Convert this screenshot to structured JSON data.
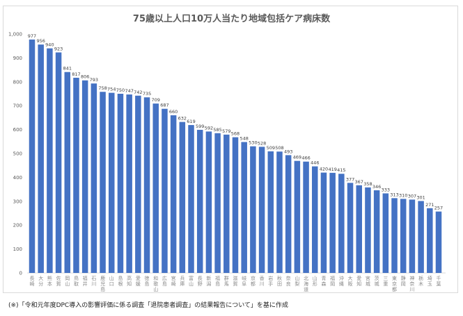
{
  "chart_data": {
    "type": "bar",
    "title": "75歳以上人口10万人当たり地域包括ケア病床数",
    "xlabel": "",
    "ylabel": "",
    "ylim": [
      0,
      1000
    ],
    "yticks": [
      "0",
      "100",
      "200",
      "300",
      "400",
      "500",
      "600",
      "700",
      "800",
      "900",
      "1,000"
    ],
    "grid": false,
    "bar_color": "#4472c4",
    "categories": [
      "長崎",
      "大分",
      "熊本",
      "佐賀",
      "岡山",
      "鳥取",
      "福井",
      "石川",
      "鹿児島",
      "山口",
      "島根",
      "高知",
      "愛媛",
      "徳島",
      "和歌山",
      "広島",
      "宮崎",
      "兵庫",
      "富山",
      "長野",
      "新潟",
      "福島",
      "群馬",
      "滋賀",
      "岐阜",
      "京都",
      "香川",
      "岩手",
      "秋田",
      "奈良",
      "山梨",
      "北海道",
      "山形",
      "青森",
      "福岡",
      "沖縄",
      "大阪",
      "愛知",
      "宮城",
      "茨城",
      "三重",
      "東京都",
      "静岡",
      "神奈川",
      "栃木",
      "埼玉",
      "千葉"
    ],
    "values": [
      977,
      956,
      940,
      923,
      841,
      817,
      806,
      793,
      758,
      754,
      750,
      747,
      742,
      735,
      709,
      687,
      660,
      632,
      619,
      599,
      592,
      585,
      579,
      568,
      548,
      530,
      528,
      509,
      508,
      493,
      469,
      466,
      446,
      420,
      419,
      415,
      377,
      367,
      358,
      346,
      333,
      313,
      310,
      307,
      301,
      271,
      257
    ]
  },
  "note": "(※)「令和元年度DPC導入の影響評価に係る調査「退院患者調査」の結果報告について」を基に作成"
}
